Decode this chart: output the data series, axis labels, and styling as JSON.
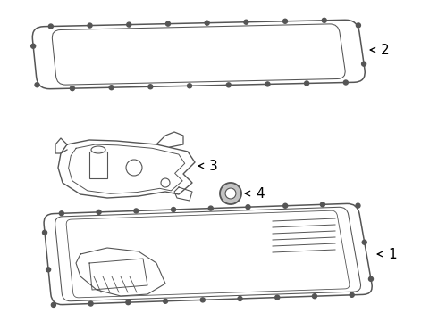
{
  "bg_color": "#ffffff",
  "line_color": "#555555",
  "fig_width": 4.9,
  "fig_height": 3.6,
  "dpi": 100
}
